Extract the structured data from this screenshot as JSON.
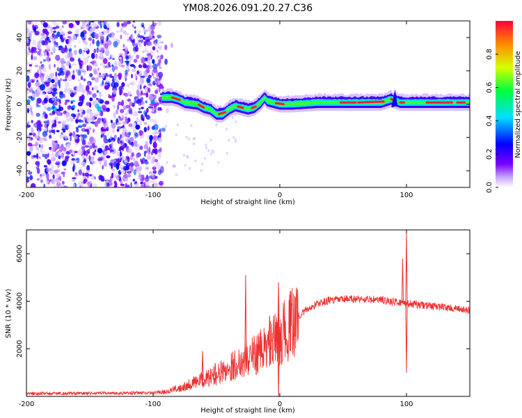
{
  "title": "YM08.2026.091.20.27.C36",
  "chart_data": [
    {
      "type": "heatmap",
      "title": "YM08.2026.091.20.27.C36",
      "xlabel": "Height of straight line (km)",
      "ylabel": "Frequency (Hz)",
      "xlim": [
        -200,
        150
      ],
      "ylim": [
        -50,
        50
      ],
      "xticks": [
        -200,
        -100,
        0,
        100
      ],
      "yticks": [
        -40,
        -20,
        0,
        20,
        40
      ],
      "colorbar": {
        "label": "Normalized spectral amplitude",
        "range": [
          0,
          1
        ],
        "ticks": [
          0.0,
          0.2,
          0.4,
          0.6,
          0.8
        ],
        "colormap": "rainbow (violet-blue-cyan-green-yellow-red)"
      },
      "noise_region_x": [
        -200,
        -93
      ],
      "ridge_center_hz": [
        [
          -93,
          4
        ],
        [
          -85,
          4
        ],
        [
          -80,
          3
        ],
        [
          -75,
          1
        ],
        [
          -65,
          0
        ],
        [
          -60,
          -2
        ],
        [
          -55,
          -3
        ],
        [
          -50,
          -6
        ],
        [
          -45,
          -6
        ],
        [
          -40,
          -3
        ],
        [
          -35,
          -1
        ],
        [
          -30,
          -2
        ],
        [
          -25,
          -3
        ],
        [
          -20,
          -2
        ],
        [
          -15,
          1
        ],
        [
          -12,
          4
        ],
        [
          -10,
          2
        ],
        [
          -5,
          1
        ],
        [
          0,
          0
        ],
        [
          10,
          0
        ],
        [
          30,
          1
        ],
        [
          60,
          1
        ],
        [
          80,
          1
        ],
        [
          88,
          3
        ],
        [
          95,
          1
        ],
        [
          120,
          1
        ],
        [
          150,
          1
        ]
      ]
    },
    {
      "type": "line",
      "xlabel": "Height of straight line (km)",
      "ylabel": "SNR (10 * v/v)",
      "xlim": [
        -200,
        150
      ],
      "ylim": [
        0,
        7000
      ],
      "xticks": [
        -200,
        -100,
        0,
        100
      ],
      "yticks": [
        2000,
        4000,
        6000
      ],
      "color": "#f03030",
      "envelope": [
        [
          -200,
          120
        ],
        [
          -150,
          130
        ],
        [
          -100,
          150
        ],
        [
          -90,
          200
        ],
        [
          -80,
          350
        ],
        [
          -70,
          550
        ],
        [
          -60,
          700
        ],
        [
          -50,
          900
        ],
        [
          -40,
          1200
        ],
        [
          -30,
          1500
        ],
        [
          -20,
          1750
        ],
        [
          -10,
          2050
        ],
        [
          0,
          2500
        ],
        [
          10,
          3100
        ],
        [
          20,
          3600
        ],
        [
          30,
          3900
        ],
        [
          40,
          4050
        ],
        [
          60,
          4100
        ],
        [
          80,
          4050
        ],
        [
          95,
          3950
        ],
        [
          100,
          3900
        ],
        [
          110,
          3850
        ],
        [
          130,
          3750
        ],
        [
          150,
          3600
        ]
      ],
      "spikes": [
        [
          -61,
          1900
        ],
        [
          -51,
          1400
        ],
        [
          -27,
          5100
        ],
        [
          -8,
          3400
        ],
        [
          -1,
          4800
        ],
        [
          -1,
          0
        ],
        [
          97,
          5800
        ],
        [
          100,
          6900
        ],
        [
          100,
          1000
        ]
      ]
    }
  ]
}
